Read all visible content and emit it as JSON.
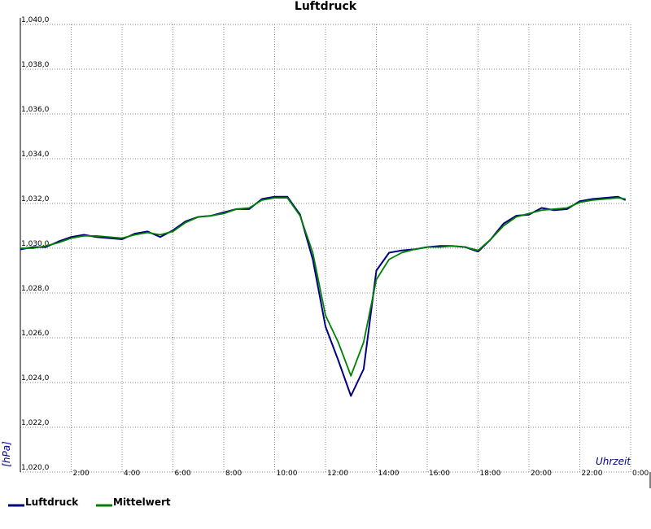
{
  "chart_data": {
    "type": "line",
    "title": "Luftdruck",
    "x_label": "Uhrzeit",
    "y_label": "[hPa]",
    "x": [
      0,
      0.5,
      1,
      1.5,
      2,
      2.5,
      3,
      3.5,
      4,
      4.5,
      5,
      5.5,
      6,
      6.5,
      7,
      7.5,
      8,
      8.5,
      9,
      9.5,
      10,
      10.5,
      11,
      11.5,
      12,
      12.5,
      13,
      13.5,
      14,
      14.5,
      15,
      15.5,
      16,
      16.5,
      17,
      17.5,
      18,
      18.5,
      19,
      19.5,
      20,
      20.5,
      21,
      21.5,
      22,
      22.5,
      23,
      23.5,
      23.8
    ],
    "series": [
      {
        "name": "Luftdruck",
        "color": "#000080",
        "values": [
          1029.95,
          1030.05,
          1030.05,
          1030.3,
          1030.5,
          1030.6,
          1030.5,
          1030.45,
          1030.4,
          1030.65,
          1030.75,
          1030.5,
          1030.8,
          1031.2,
          1031.4,
          1031.45,
          1031.6,
          1031.75,
          1031.75,
          1032.2,
          1032.3,
          1032.3,
          1031.5,
          1029.5,
          1026.5,
          1025.0,
          1023.4,
          1024.6,
          1029.0,
          1029.8,
          1029.9,
          1029.95,
          1030.05,
          1030.1,
          1030.1,
          1030.05,
          1029.85,
          1030.4,
          1031.1,
          1031.45,
          1031.5,
          1031.8,
          1031.7,
          1031.75,
          1032.1,
          1032.2,
          1032.25,
          1032.3,
          1032.15
        ]
      },
      {
        "name": "Mittelwert",
        "color": "#008000",
        "values": [
          1030.0,
          1030.0,
          1030.1,
          1030.25,
          1030.45,
          1030.55,
          1030.55,
          1030.5,
          1030.45,
          1030.6,
          1030.7,
          1030.6,
          1030.75,
          1031.15,
          1031.4,
          1031.45,
          1031.55,
          1031.75,
          1031.8,
          1032.15,
          1032.25,
          1032.25,
          1031.45,
          1029.8,
          1027.0,
          1025.8,
          1024.3,
          1025.8,
          1028.6,
          1029.5,
          1029.8,
          1029.95,
          1030.05,
          1030.05,
          1030.1,
          1030.05,
          1029.9,
          1030.4,
          1031.0,
          1031.4,
          1031.55,
          1031.7,
          1031.75,
          1031.8,
          1032.05,
          1032.15,
          1032.2,
          1032.25,
          1032.2
        ]
      }
    ],
    "xlim": [
      0,
      24
    ],
    "xticks": [
      {
        "value": 2,
        "label": "2:00"
      },
      {
        "value": 4,
        "label": "4:00"
      },
      {
        "value": 6,
        "label": "6:00"
      },
      {
        "value": 8,
        "label": "8:00"
      },
      {
        "value": 10,
        "label": "10:00"
      },
      {
        "value": 12,
        "label": "12:00"
      },
      {
        "value": 14,
        "label": "14:00"
      },
      {
        "value": 16,
        "label": "16:00"
      },
      {
        "value": 18,
        "label": "18:00"
      },
      {
        "value": 20,
        "label": "20:00"
      },
      {
        "value": 22,
        "label": "22:00"
      },
      {
        "value": 24,
        "label": "0:00"
      }
    ],
    "ylim": [
      1020,
      1040
    ],
    "yticks": [
      {
        "value": 1020,
        "label": "1,020,0"
      },
      {
        "value": 1022,
        "label": "1,022,0"
      },
      {
        "value": 1024,
        "label": "1,024,0"
      },
      {
        "value": 1026,
        "label": "1,026,0"
      },
      {
        "value": 1028,
        "label": "1,028,0"
      },
      {
        "value": 1030,
        "label": "1,030,0"
      },
      {
        "value": 1032,
        "label": "1,032,0"
      },
      {
        "value": 1034,
        "label": "1,034,0"
      },
      {
        "value": 1036,
        "label": "1,036,0"
      },
      {
        "value": 1038,
        "label": "1,038,0"
      },
      {
        "value": 1040,
        "label": "1,040,0"
      }
    ],
    "grid": true
  }
}
